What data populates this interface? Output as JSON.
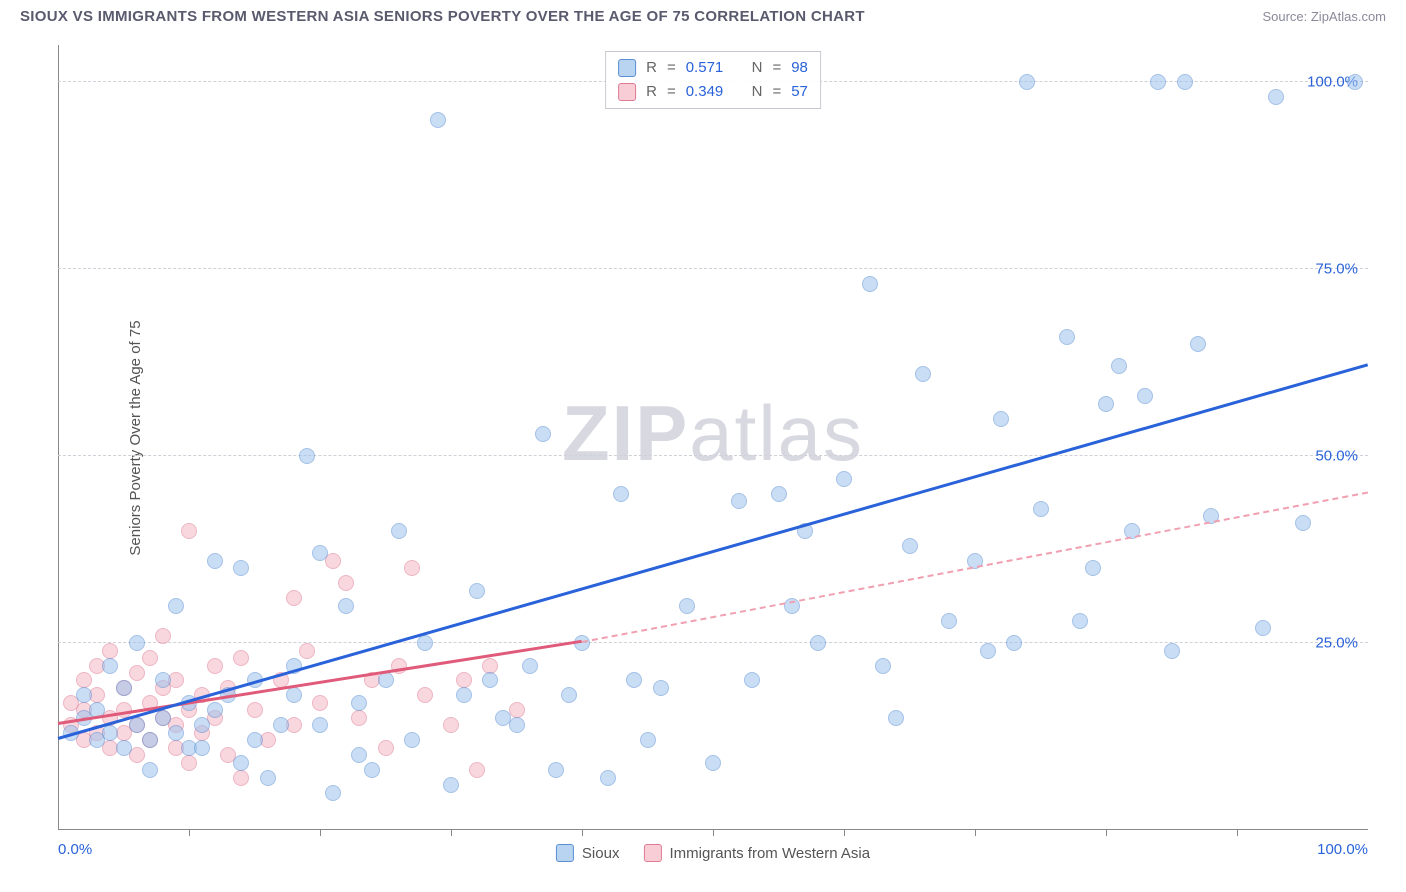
{
  "title": "SIOUX VS IMMIGRANTS FROM WESTERN ASIA SENIORS POVERTY OVER THE AGE OF 75 CORRELATION CHART",
  "source": "Source: ZipAtlas.com",
  "watermark_a": "ZIP",
  "watermark_b": "atlas",
  "ylabel": "Seniors Poverty Over the Age of 75",
  "chart": {
    "type": "scatter",
    "xlim": [
      0,
      100
    ],
    "ylim": [
      0,
      105
    ],
    "grid_color": "#d0d0d8",
    "background_color": "#ffffff",
    "gridlines_y": [
      25,
      50,
      75,
      100
    ],
    "yticks": [
      {
        "v": 25,
        "label": "25.0%"
      },
      {
        "v": 50,
        "label": "50.0%"
      },
      {
        "v": 75,
        "label": "75.0%"
      },
      {
        "v": 100,
        "label": "100.0%"
      }
    ],
    "xticks_minor": [
      10,
      20,
      30,
      40,
      50,
      60,
      70,
      80,
      90
    ],
    "xlabels": [
      {
        "v": 0,
        "label": "0.0%"
      },
      {
        "v": 100,
        "label": "100.0%"
      }
    ],
    "series1": {
      "name": "Sioux",
      "color_fill": "#9ec3ed",
      "color_stroke": "#5a8fd4",
      "R": "0.571",
      "N": "98",
      "reg_line": {
        "x1": 0,
        "y1": 12,
        "x2": 100,
        "y2": 62,
        "color": "#2962d9",
        "width": 3,
        "dashed": false
      },
      "points": [
        [
          1,
          13
        ],
        [
          2,
          15
        ],
        [
          2,
          18
        ],
        [
          3,
          12
        ],
        [
          3,
          16
        ],
        [
          4,
          22
        ],
        [
          4,
          13
        ],
        [
          5,
          11
        ],
        [
          5,
          19
        ],
        [
          6,
          14
        ],
        [
          6,
          25
        ],
        [
          7,
          12
        ],
        [
          7,
          8
        ],
        [
          8,
          15
        ],
        [
          8,
          20
        ],
        [
          9,
          13
        ],
        [
          9,
          30
        ],
        [
          10,
          11
        ],
        [
          10,
          17
        ],
        [
          11,
          14
        ],
        [
          11,
          11
        ],
        [
          12,
          16
        ],
        [
          12,
          36
        ],
        [
          13,
          18
        ],
        [
          14,
          9
        ],
        [
          14,
          35
        ],
        [
          15,
          12
        ],
        [
          15,
          20
        ],
        [
          16,
          7
        ],
        [
          17,
          14
        ],
        [
          18,
          22
        ],
        [
          18,
          18
        ],
        [
          19,
          50
        ],
        [
          20,
          14
        ],
        [
          20,
          37
        ],
        [
          21,
          5
        ],
        [
          22,
          30
        ],
        [
          23,
          10
        ],
        [
          23,
          17
        ],
        [
          24,
          8
        ],
        [
          25,
          20
        ],
        [
          26,
          40
        ],
        [
          27,
          12
        ],
        [
          28,
          25
        ],
        [
          29,
          95
        ],
        [
          30,
          6
        ],
        [
          31,
          18
        ],
        [
          32,
          32
        ],
        [
          33,
          20
        ],
        [
          34,
          15
        ],
        [
          35,
          14
        ],
        [
          36,
          22
        ],
        [
          37,
          53
        ],
        [
          38,
          8
        ],
        [
          39,
          18
        ],
        [
          40,
          25
        ],
        [
          42,
          7
        ],
        [
          43,
          45
        ],
        [
          44,
          20
        ],
        [
          45,
          12
        ],
        [
          46,
          19
        ],
        [
          48,
          30
        ],
        [
          50,
          9
        ],
        [
          52,
          44
        ],
        [
          53,
          20
        ],
        [
          55,
          45
        ],
        [
          56,
          30
        ],
        [
          57,
          40
        ],
        [
          58,
          25
        ],
        [
          60,
          47
        ],
        [
          62,
          73
        ],
        [
          63,
          22
        ],
        [
          64,
          15
        ],
        [
          65,
          38
        ],
        [
          66,
          61
        ],
        [
          68,
          28
        ],
        [
          70,
          36
        ],
        [
          71,
          24
        ],
        [
          72,
          55
        ],
        [
          73,
          25
        ],
        [
          74,
          100
        ],
        [
          75,
          43
        ],
        [
          77,
          66
        ],
        [
          78,
          28
        ],
        [
          79,
          35
        ],
        [
          80,
          57
        ],
        [
          81,
          62
        ],
        [
          82,
          40
        ],
        [
          83,
          58
        ],
        [
          84,
          100
        ],
        [
          85,
          24
        ],
        [
          86,
          100
        ],
        [
          87,
          65
        ],
        [
          88,
          42
        ],
        [
          92,
          27
        ],
        [
          93,
          98
        ],
        [
          95,
          41
        ],
        [
          99,
          100
        ]
      ]
    },
    "series2": {
      "name": "Immigrants from Western Asia",
      "color_fill": "#f5b8c5",
      "color_stroke": "#e07a92",
      "R": "0.349",
      "N": "57",
      "reg_line_solid": {
        "x1": 0,
        "y1": 14,
        "x2": 40,
        "y2": 25,
        "color": "#e05a7a",
        "width": 3,
        "dashed": false
      },
      "reg_line_dashed": {
        "x1": 40,
        "y1": 25,
        "x2": 100,
        "y2": 45,
        "color": "#f0a0b0",
        "width": 2,
        "dashed": true
      },
      "points": [
        [
          1,
          14
        ],
        [
          1,
          17
        ],
        [
          2,
          12
        ],
        [
          2,
          20
        ],
        [
          2,
          16
        ],
        [
          3,
          13
        ],
        [
          3,
          22
        ],
        [
          3,
          18
        ],
        [
          4,
          11
        ],
        [
          4,
          15
        ],
        [
          4,
          24
        ],
        [
          5,
          13
        ],
        [
          5,
          19
        ],
        [
          5,
          16
        ],
        [
          6,
          21
        ],
        [
          6,
          14
        ],
        [
          6,
          10
        ],
        [
          7,
          17
        ],
        [
          7,
          23
        ],
        [
          7,
          12
        ],
        [
          8,
          15
        ],
        [
          8,
          19
        ],
        [
          8,
          26
        ],
        [
          9,
          11
        ],
        [
          9,
          14
        ],
        [
          9,
          20
        ],
        [
          10,
          40
        ],
        [
          10,
          16
        ],
        [
          10,
          9
        ],
        [
          11,
          18
        ],
        [
          11,
          13
        ],
        [
          12,
          22
        ],
        [
          12,
          15
        ],
        [
          13,
          10
        ],
        [
          13,
          19
        ],
        [
          14,
          23
        ],
        [
          14,
          7
        ],
        [
          15,
          16
        ],
        [
          16,
          12
        ],
        [
          17,
          20
        ],
        [
          18,
          31
        ],
        [
          18,
          14
        ],
        [
          19,
          24
        ],
        [
          20,
          17
        ],
        [
          21,
          36
        ],
        [
          22,
          33
        ],
        [
          23,
          15
        ],
        [
          24,
          20
        ],
        [
          25,
          11
        ],
        [
          26,
          22
        ],
        [
          27,
          35
        ],
        [
          28,
          18
        ],
        [
          30,
          14
        ],
        [
          31,
          20
        ],
        [
          32,
          8
        ],
        [
          33,
          22
        ],
        [
          35,
          16
        ]
      ]
    }
  },
  "legend": {
    "s1": "Sioux",
    "s2": "Immigrants from Western Asia"
  },
  "stats_labels": {
    "R": "R",
    "N": "N",
    "eq": "="
  }
}
